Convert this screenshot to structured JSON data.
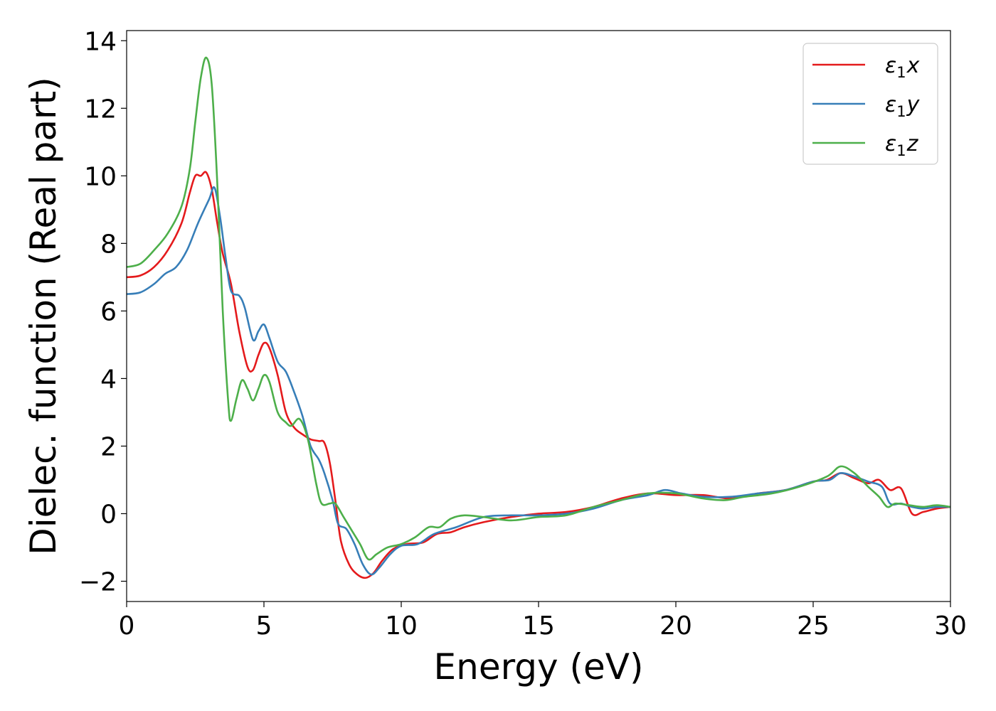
{
  "chart_data": {
    "type": "line",
    "title": "",
    "xlabel": "Energy (eV)",
    "ylabel": "Dielec. function (Real part)",
    "xlim": [
      0,
      30
    ],
    "ylim": [
      -2.6,
      14.3
    ],
    "xticks": [
      0,
      5,
      10,
      15,
      20,
      25,
      30
    ],
    "xtick_labels": [
      "0",
      "5",
      "10",
      "15",
      "20",
      "25",
      "30"
    ],
    "yticks": [
      -2,
      0,
      2,
      4,
      6,
      8,
      10,
      12,
      14
    ],
    "ytick_labels": [
      "−2",
      "0",
      "2",
      "4",
      "6",
      "8",
      "10",
      "12",
      "14"
    ],
    "grid": false,
    "legend_position": "top-right",
    "series": [
      {
        "name": "ε1x",
        "legend_main": "ε",
        "legend_sub": "1",
        "legend_suffix": "x",
        "color": "#e41a1c",
        "points": [
          [
            0,
            7.0
          ],
          [
            0.5,
            7.05
          ],
          [
            1.0,
            7.3
          ],
          [
            1.5,
            7.8
          ],
          [
            2.0,
            8.6
          ],
          [
            2.3,
            9.5
          ],
          [
            2.5,
            10.0
          ],
          [
            2.7,
            10.0
          ],
          [
            2.9,
            10.1
          ],
          [
            3.1,
            9.6
          ],
          [
            3.3,
            8.6
          ],
          [
            3.5,
            7.7
          ],
          [
            3.8,
            6.8
          ],
          [
            4.1,
            5.4
          ],
          [
            4.4,
            4.35
          ],
          [
            4.6,
            4.25
          ],
          [
            4.8,
            4.7
          ],
          [
            5.0,
            5.05
          ],
          [
            5.2,
            4.9
          ],
          [
            5.5,
            4.1
          ],
          [
            5.8,
            3.0
          ],
          [
            6.1,
            2.55
          ],
          [
            6.4,
            2.35
          ],
          [
            6.7,
            2.2
          ],
          [
            7.0,
            2.15
          ],
          [
            7.2,
            2.1
          ],
          [
            7.4,
            1.5
          ],
          [
            7.6,
            0.4
          ],
          [
            7.8,
            -0.8
          ],
          [
            8.1,
            -1.5
          ],
          [
            8.4,
            -1.8
          ],
          [
            8.7,
            -1.9
          ],
          [
            9.0,
            -1.75
          ],
          [
            9.3,
            -1.4
          ],
          [
            9.7,
            -1.05
          ],
          [
            10.2,
            -0.9
          ],
          [
            10.8,
            -0.85
          ],
          [
            11.3,
            -0.6
          ],
          [
            11.8,
            -0.55
          ],
          [
            12.3,
            -0.4
          ],
          [
            13.0,
            -0.25
          ],
          [
            14.0,
            -0.1
          ],
          [
            15.0,
            0.0
          ],
          [
            16.0,
            0.05
          ],
          [
            17.0,
            0.2
          ],
          [
            18.0,
            0.45
          ],
          [
            19.0,
            0.6
          ],
          [
            20.0,
            0.55
          ],
          [
            21.0,
            0.55
          ],
          [
            22.0,
            0.45
          ],
          [
            23.0,
            0.6
          ],
          [
            24.0,
            0.7
          ],
          [
            25.0,
            0.95
          ],
          [
            25.5,
            1.0
          ],
          [
            26.0,
            1.2
          ],
          [
            26.5,
            1.05
          ],
          [
            27.0,
            0.9
          ],
          [
            27.4,
            1.0
          ],
          [
            27.8,
            0.7
          ],
          [
            28.2,
            0.75
          ],
          [
            28.6,
            0.0
          ],
          [
            29.0,
            0.05
          ],
          [
            29.5,
            0.15
          ],
          [
            30.0,
            0.2
          ]
        ]
      },
      {
        "name": "ε1y",
        "legend_main": "ε",
        "legend_sub": "1",
        "legend_suffix": "y",
        "color": "#377eb8",
        "points": [
          [
            0,
            6.5
          ],
          [
            0.5,
            6.55
          ],
          [
            1.0,
            6.8
          ],
          [
            1.4,
            7.1
          ],
          [
            1.8,
            7.3
          ],
          [
            2.2,
            7.8
          ],
          [
            2.6,
            8.6
          ],
          [
            3.0,
            9.3
          ],
          [
            3.2,
            9.65
          ],
          [
            3.4,
            8.8
          ],
          [
            3.6,
            7.6
          ],
          [
            3.8,
            6.6
          ],
          [
            4.1,
            6.45
          ],
          [
            4.3,
            6.1
          ],
          [
            4.6,
            5.15
          ],
          [
            4.8,
            5.4
          ],
          [
            5.0,
            5.6
          ],
          [
            5.2,
            5.2
          ],
          [
            5.5,
            4.5
          ],
          [
            5.8,
            4.2
          ],
          [
            6.1,
            3.6
          ],
          [
            6.4,
            2.9
          ],
          [
            6.7,
            2.0
          ],
          [
            7.0,
            1.6
          ],
          [
            7.2,
            1.2
          ],
          [
            7.5,
            0.4
          ],
          [
            7.7,
            -0.3
          ],
          [
            8.0,
            -0.45
          ],
          [
            8.3,
            -0.9
          ],
          [
            8.6,
            -1.5
          ],
          [
            8.9,
            -1.8
          ],
          [
            9.2,
            -1.6
          ],
          [
            9.6,
            -1.2
          ],
          [
            10.0,
            -0.95
          ],
          [
            10.6,
            -0.9
          ],
          [
            11.2,
            -0.6
          ],
          [
            12.0,
            -0.4
          ],
          [
            13.0,
            -0.1
          ],
          [
            14.0,
            -0.05
          ],
          [
            15.0,
            -0.05
          ],
          [
            16.0,
            0.0
          ],
          [
            17.0,
            0.15
          ],
          [
            18.0,
            0.4
          ],
          [
            19.0,
            0.55
          ],
          [
            19.6,
            0.7
          ],
          [
            20.2,
            0.6
          ],
          [
            21.0,
            0.5
          ],
          [
            22.0,
            0.5
          ],
          [
            23.0,
            0.6
          ],
          [
            24.0,
            0.7
          ],
          [
            25.0,
            0.95
          ],
          [
            25.6,
            1.0
          ],
          [
            26.0,
            1.2
          ],
          [
            26.5,
            1.1
          ],
          [
            27.0,
            0.95
          ],
          [
            27.5,
            0.8
          ],
          [
            27.8,
            0.3
          ],
          [
            28.2,
            0.3
          ],
          [
            28.6,
            0.2
          ],
          [
            29.0,
            0.15
          ],
          [
            29.5,
            0.2
          ],
          [
            30.0,
            0.2
          ]
        ]
      },
      {
        "name": "ε1z",
        "legend_main": "ε",
        "legend_sub": "1",
        "legend_suffix": "z",
        "color": "#4daf4a",
        "points": [
          [
            0,
            7.3
          ],
          [
            0.5,
            7.4
          ],
          [
            1.0,
            7.8
          ],
          [
            1.5,
            8.3
          ],
          [
            2.0,
            9.1
          ],
          [
            2.3,
            10.2
          ],
          [
            2.5,
            11.6
          ],
          [
            2.7,
            12.9
          ],
          [
            2.9,
            13.5
          ],
          [
            3.1,
            12.7
          ],
          [
            3.3,
            9.8
          ],
          [
            3.5,
            6.0
          ],
          [
            3.7,
            3.3
          ],
          [
            3.8,
            2.75
          ],
          [
            4.0,
            3.4
          ],
          [
            4.2,
            3.95
          ],
          [
            4.4,
            3.7
          ],
          [
            4.6,
            3.35
          ],
          [
            4.8,
            3.7
          ],
          [
            5.0,
            4.1
          ],
          [
            5.2,
            3.9
          ],
          [
            5.5,
            3.0
          ],
          [
            5.8,
            2.7
          ],
          [
            6.0,
            2.6
          ],
          [
            6.3,
            2.8
          ],
          [
            6.6,
            2.2
          ],
          [
            6.9,
            0.9
          ],
          [
            7.1,
            0.3
          ],
          [
            7.4,
            0.3
          ],
          [
            7.6,
            0.3
          ],
          [
            7.9,
            -0.1
          ],
          [
            8.2,
            -0.5
          ],
          [
            8.5,
            -0.9
          ],
          [
            8.8,
            -1.35
          ],
          [
            9.1,
            -1.2
          ],
          [
            9.5,
            -1.0
          ],
          [
            10.0,
            -0.9
          ],
          [
            10.5,
            -0.7
          ],
          [
            11.0,
            -0.4
          ],
          [
            11.4,
            -0.4
          ],
          [
            11.8,
            -0.15
          ],
          [
            12.3,
            -0.05
          ],
          [
            13.0,
            -0.1
          ],
          [
            14.0,
            -0.2
          ],
          [
            15.0,
            -0.1
          ],
          [
            16.0,
            -0.05
          ],
          [
            17.0,
            0.2
          ],
          [
            18.0,
            0.4
          ],
          [
            19.0,
            0.6
          ],
          [
            20.0,
            0.6
          ],
          [
            21.0,
            0.45
          ],
          [
            21.8,
            0.4
          ],
          [
            22.5,
            0.5
          ],
          [
            23.5,
            0.6
          ],
          [
            24.5,
            0.8
          ],
          [
            25.5,
            1.1
          ],
          [
            26.0,
            1.4
          ],
          [
            26.5,
            1.2
          ],
          [
            27.0,
            0.8
          ],
          [
            27.4,
            0.5
          ],
          [
            27.7,
            0.2
          ],
          [
            28.0,
            0.3
          ],
          [
            28.5,
            0.25
          ],
          [
            29.0,
            0.2
          ],
          [
            29.5,
            0.25
          ],
          [
            30.0,
            0.2
          ]
        ]
      }
    ]
  }
}
